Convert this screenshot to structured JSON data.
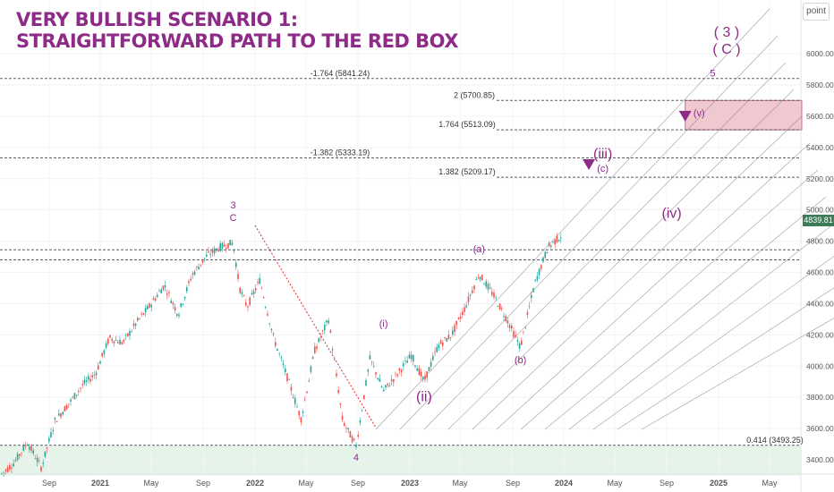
{
  "title_lines": [
    "VERY BULLISH SCENARIO 1:",
    "STRAIGHTFORWARD PATH TO THE RED BOX"
  ],
  "price_scale_unit": "point",
  "last_price": "4839.81",
  "colors": {
    "accent": "#8e2a87",
    "bull_candle": "#26a69a",
    "bear_candle": "#ef5350",
    "fib_line": "#5b5e68",
    "target_box": "#f0c8d0",
    "support_zone": "#dcefe0",
    "channel": "#777777"
  },
  "chart_data": {
    "type": "candlestick",
    "title": "VERY BULLISH SCENARIO 1: STRAIGHTFORWARD PATH TO THE RED BOX",
    "xlabel": "",
    "ylabel": "",
    "x_ticks": [
      "Sep",
      "2021",
      "May",
      "Sep",
      "2022",
      "May",
      "Sep",
      "2023",
      "May",
      "Sep",
      "2024",
      "May",
      "Sep",
      "2025",
      "May"
    ],
    "y_ticks": [
      3400,
      3600,
      3800,
      4000,
      4200,
      4400,
      4600,
      4800,
      5000,
      5200,
      5400,
      5600,
      5800,
      6000
    ],
    "ylim": [
      3300,
      6200
    ],
    "grid": true,
    "series": [
      {
        "price_path": [
          [
            "2020-08",
            3300
          ],
          [
            "2020-09",
            3380
          ],
          [
            "2020-10",
            3510
          ],
          [
            "2020-11",
            3350
          ],
          [
            "2020-12",
            3650
          ],
          [
            "2021-01",
            3760
          ],
          [
            "2021-02",
            3880
          ],
          [
            "2021-03",
            3950
          ],
          [
            "2021-04",
            4180
          ],
          [
            "2021-05",
            4150
          ],
          [
            "2021-06",
            4280
          ],
          [
            "2021-07",
            4390
          ],
          [
            "2021-08",
            4520
          ],
          [
            "2021-09",
            4330
          ],
          [
            "2021-10",
            4580
          ],
          [
            "2021-11",
            4700
          ],
          [
            "2021-12",
            4760
          ],
          [
            "2022-01",
            4790
          ],
          [
            "2022-01-15",
            4500
          ],
          [
            "2022-02",
            4380
          ],
          [
            "2022-03",
            4550
          ],
          [
            "2022-04",
            4180
          ],
          [
            "2022-05",
            3930
          ],
          [
            "2022-06",
            3660
          ],
          [
            "2022-07",
            4100
          ],
          [
            "2022-08",
            4300
          ],
          [
            "2022-09",
            3650
          ],
          [
            "2022-10",
            3490
          ],
          [
            "2022-11",
            4050
          ],
          [
            "2022-12",
            3840
          ],
          [
            "2023-01",
            3950
          ],
          [
            "2023-02",
            4070
          ],
          [
            "2023-03",
            3900
          ],
          [
            "2023-04",
            4130
          ],
          [
            "2023-05",
            4200
          ],
          [
            "2023-06",
            4380
          ],
          [
            "2023-07",
            4590
          ],
          [
            "2023-08",
            4460
          ],
          [
            "2023-09",
            4300
          ],
          [
            "2023-10",
            4120
          ],
          [
            "2023-11",
            4520
          ],
          [
            "2023-12",
            4760
          ],
          [
            "2024-01",
            4839
          ]
        ]
      }
    ],
    "horizontal_levels": [
      {
        "label": "-1.764 (5841.24)",
        "value": 5841.24
      },
      {
        "label": "2 (5700.85)",
        "value": 5700.85
      },
      {
        "label": "1.764 (5513.09)",
        "value": 5513.09
      },
      {
        "label": "-1.382 (5333.19)",
        "value": 5333.19
      },
      {
        "label": "1.382 (5209.17)",
        "value": 5209.17
      },
      {
        "label": "0.414 (3493.25)",
        "value": 3493.25
      }
    ],
    "target_box": {
      "x_from": "2024-10",
      "x_to": "2025-07",
      "y_from": 5513.09,
      "y_to": 5700.85
    },
    "support_zone": {
      "y_from": 3300,
      "y_to": 3493.25
    },
    "wave_labels": [
      {
        "text": "3",
        "x": "2022-01",
        "y": 5010
      },
      {
        "text": "C",
        "x": "2022-01",
        "y": 4930
      },
      {
        "text": "4",
        "x": "2022-10",
        "y": 3395
      },
      {
        "text": "(i)",
        "x": "2022-12",
        "y": 4250
      },
      {
        "text": "(ii)",
        "x": "2023-03",
        "y": 3775
      },
      {
        "text": "(a)",
        "x": "2023-07",
        "y": 4730
      },
      {
        "text": "(b)",
        "x": "2023-10",
        "y": 4020
      },
      {
        "text": "(iii)",
        "x": "2024-04",
        "y": 5330
      },
      {
        "text": "(c)",
        "x": "2024-04",
        "y": 5245
      },
      {
        "text": "(iv)",
        "x": "2024-09",
        "y": 4950
      },
      {
        "text": "(v)",
        "x": "2024-11",
        "y": 5600
      },
      {
        "text": "5",
        "x": "2024-12",
        "y": 5855
      },
      {
        "text": "( 3 )",
        "x": "2025-01",
        "y": 6110
      },
      {
        "text": "( C )",
        "x": "2025-01",
        "y": 6000
      }
    ],
    "arrows": [
      {
        "direction": "down",
        "x": "2024-03",
        "y": 5290
      },
      {
        "direction": "down",
        "x": "2024-10",
        "y": 5600
      }
    ]
  }
}
